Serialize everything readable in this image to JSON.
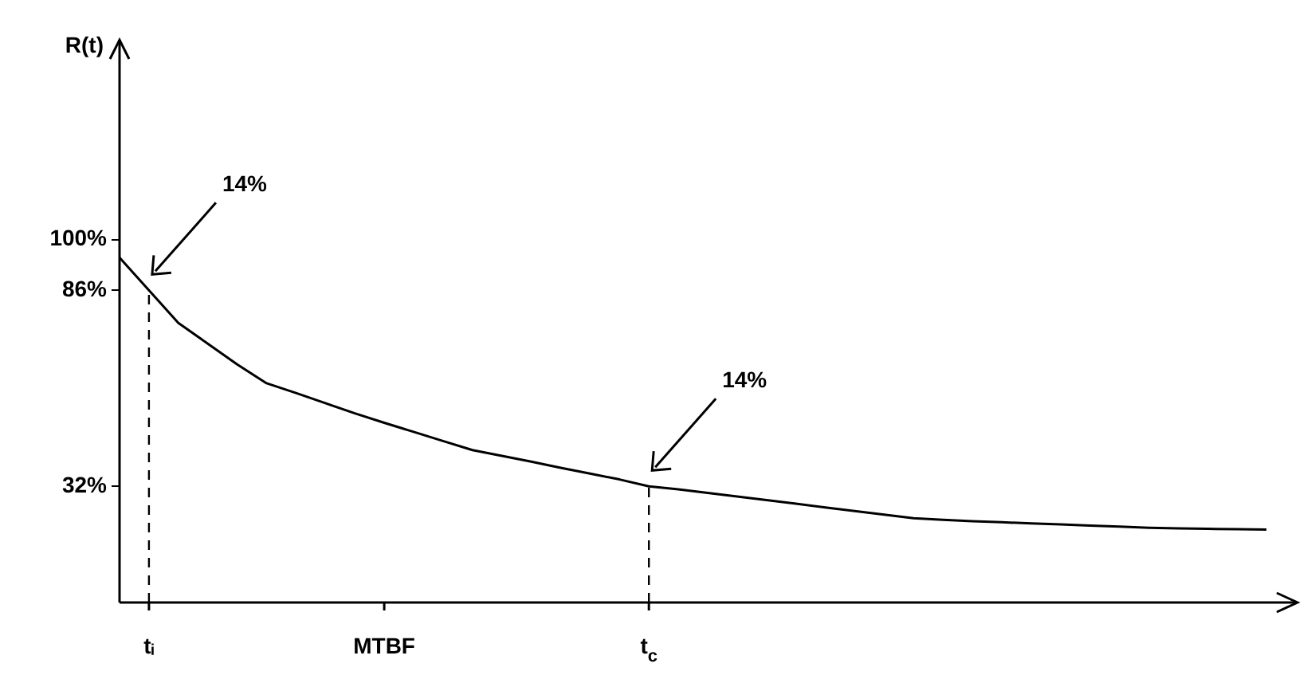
{
  "chart_data": {
    "type": "line",
    "ylabel": "R(t)",
    "categories": [
      null,
      "tᵢ",
      null,
      null,
      null,
      null,
      null,
      null,
      null,
      "MTBF",
      null,
      null,
      null,
      null,
      null,
      null,
      null,
      null,
      "t$_{c}$",
      null,
      null,
      null,
      null,
      null,
      null,
      null,
      null,
      null,
      null,
      null,
      null,
      null,
      null,
      null,
      null,
      null,
      null,
      null,
      null,
      null,
      null
    ],
    "series": [
      {
        "color": "#000000",
        "values": [
          95,
          86,
          77,
          71.3,
          65.6,
          60.4,
          57.7,
          54.9,
          52.1,
          49.5,
          47,
          44.5,
          42,
          40.4,
          38.8,
          37.1,
          35.5,
          33.9,
          32,
          31.2,
          30.2,
          29.2,
          28.2,
          27.2,
          26.2,
          25.2,
          24.2,
          23.2,
          22.8,
          22.4,
          22.1,
          21.8,
          21.5,
          21.2,
          20.9,
          20.6,
          20.4,
          20.3,
          20.2,
          20.1,
          null
        ]
      }
    ],
    "ylim": [
      0,
      155
    ],
    "yticks": [
      {
        "value": 32,
        "label": "32%"
      },
      {
        "value": 86,
        "label": "86%"
      },
      {
        "value": 100,
        "label": "100%"
      }
    ],
    "grid": false,
    "legend": false,
    "marker": "none",
    "line_style": "solid",
    "ref_lines": [
      {
        "axis": "x",
        "value": "tᵢ",
        "line_style": "dashed",
        "color": "#000000"
      },
      {
        "axis": "x",
        "value": "t$_{c}$",
        "line_style": "dashed",
        "color": "#000000"
      }
    ],
    "annotations": [
      "14%",
      "14%"
    ]
  }
}
